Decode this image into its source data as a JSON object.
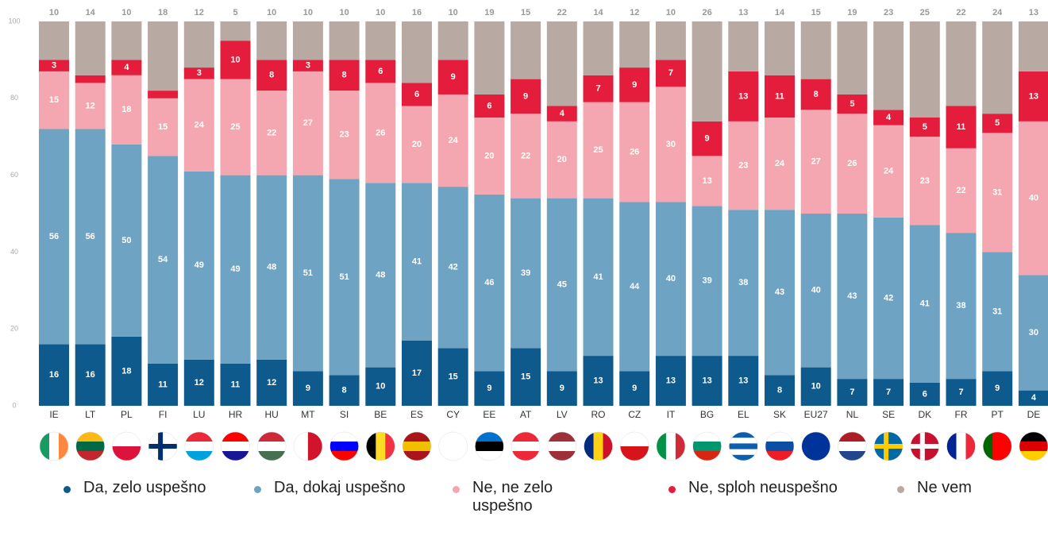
{
  "chart_data": {
    "type": "stacked_bar",
    "categories": [
      "IE",
      "LT",
      "PL",
      "FI",
      "LU",
      "HR",
      "HU",
      "MT",
      "SI",
      "BE",
      "ES",
      "CY",
      "EE",
      "AT",
      "LV",
      "RO",
      "CZ",
      "IT",
      "BG",
      "EL",
      "SK",
      "EU27",
      "NL",
      "SE",
      "DK",
      "FR",
      "PT",
      "DE"
    ],
    "series": [
      {
        "name": "Da, zelo uspešno",
        "color": "#0f5a8c",
        "values": [
          16,
          16,
          18,
          11,
          12,
          11,
          12,
          9,
          8,
          10,
          17,
          15,
          9,
          15,
          9,
          13,
          9,
          13,
          13,
          13,
          8,
          10,
          7,
          7,
          6,
          7,
          9,
          4
        ]
      },
      {
        "name": "Da, dokaj uspešno",
        "color": "#6fa3c4",
        "values": [
          56,
          56,
          50,
          54,
          49,
          49,
          48,
          51,
          51,
          48,
          41,
          42,
          46,
          39,
          45,
          41,
          44,
          40,
          39,
          38,
          43,
          40,
          43,
          42,
          41,
          38,
          31,
          30
        ]
      },
      {
        "name": "Ne, ne zelo uspešno",
        "color": "#f4a7b0",
        "values": [
          15,
          12,
          18,
          15,
          24,
          25,
          22,
          27,
          23,
          26,
          20,
          24,
          20,
          22,
          20,
          25,
          26,
          30,
          13,
          23,
          24,
          27,
          26,
          24,
          23,
          22,
          31,
          40
        ]
      },
      {
        "name": "Ne, sploh neuspešno",
        "color": "#e31d3b",
        "values": [
          3,
          2,
          4,
          2,
          3,
          10,
          8,
          3,
          8,
          6,
          6,
          9,
          6,
          9,
          4,
          7,
          9,
          7,
          9,
          13,
          11,
          8,
          5,
          4,
          5,
          11,
          5,
          13
        ]
      },
      {
        "name": "Ne vem",
        "color": "#b8aaa3",
        "values": [
          10,
          14,
          10,
          18,
          12,
          5,
          10,
          10,
          10,
          10,
          16,
          10,
          19,
          15,
          22,
          14,
          12,
          10,
          26,
          13,
          14,
          15,
          19,
          23,
          25,
          22,
          24,
          13
        ]
      }
    ],
    "ylim": [
      0,
      100
    ],
    "yticks": [
      0,
      20,
      40,
      60,
      80,
      100
    ]
  }
}
